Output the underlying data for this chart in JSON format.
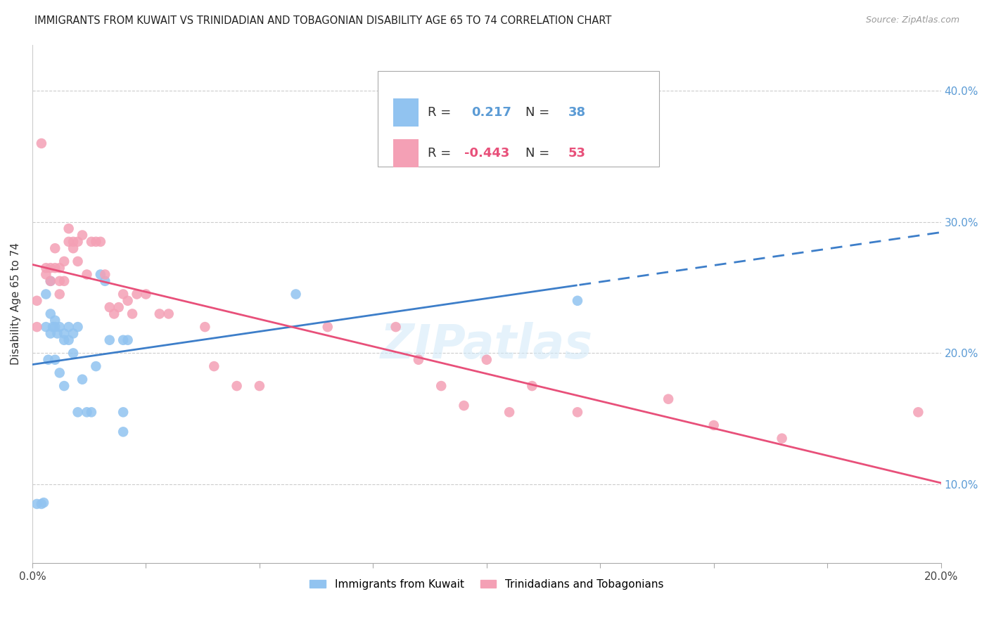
{
  "title": "IMMIGRANTS FROM KUWAIT VS TRINIDADIAN AND TOBAGONIAN DISABILITY AGE 65 TO 74 CORRELATION CHART",
  "source": "Source: ZipAtlas.com",
  "ylabel": "Disability Age 65 to 74",
  "kuwait_color": "#91C3F0",
  "tt_color": "#F4A0B5",
  "kuwait_line_color": "#3D7EC9",
  "tt_line_color": "#E8507A",
  "watermark": "ZIPatlas",
  "xmin": 0.0,
  "xmax": 0.2,
  "ymin": 0.04,
  "ymax": 0.435,
  "yticks": [
    0.1,
    0.2,
    0.3,
    0.4
  ],
  "ytick_labels": [
    "10.0%",
    "20.0%",
    "30.0%",
    "40.0%"
  ],
  "xtick_positions": [
    0.0,
    0.025,
    0.05,
    0.075,
    0.1,
    0.125,
    0.15,
    0.175,
    0.2
  ],
  "kuwait_points_x": [
    0.001,
    0.002,
    0.0025,
    0.003,
    0.003,
    0.0035,
    0.004,
    0.004,
    0.004,
    0.0045,
    0.005,
    0.005,
    0.005,
    0.0055,
    0.006,
    0.006,
    0.007,
    0.007,
    0.007,
    0.008,
    0.008,
    0.009,
    0.009,
    0.01,
    0.01,
    0.011,
    0.012,
    0.013,
    0.014,
    0.015,
    0.016,
    0.017,
    0.02,
    0.02,
    0.02,
    0.021,
    0.058,
    0.12
  ],
  "kuwait_points_y": [
    0.085,
    0.085,
    0.086,
    0.245,
    0.22,
    0.195,
    0.255,
    0.23,
    0.215,
    0.22,
    0.225,
    0.22,
    0.195,
    0.215,
    0.22,
    0.185,
    0.215,
    0.21,
    0.175,
    0.22,
    0.21,
    0.215,
    0.2,
    0.22,
    0.155,
    0.18,
    0.155,
    0.155,
    0.19,
    0.26,
    0.255,
    0.21,
    0.155,
    0.14,
    0.21,
    0.21,
    0.245,
    0.24
  ],
  "tt_points_x": [
    0.001,
    0.001,
    0.002,
    0.003,
    0.003,
    0.004,
    0.004,
    0.005,
    0.005,
    0.006,
    0.006,
    0.006,
    0.007,
    0.007,
    0.008,
    0.008,
    0.009,
    0.009,
    0.01,
    0.01,
    0.011,
    0.012,
    0.013,
    0.014,
    0.015,
    0.016,
    0.017,
    0.018,
    0.019,
    0.02,
    0.021,
    0.022,
    0.023,
    0.025,
    0.028,
    0.03,
    0.038,
    0.04,
    0.045,
    0.05,
    0.065,
    0.08,
    0.085,
    0.09,
    0.095,
    0.1,
    0.105,
    0.11,
    0.12,
    0.14,
    0.15,
    0.165,
    0.195
  ],
  "tt_points_y": [
    0.24,
    0.22,
    0.36,
    0.265,
    0.26,
    0.265,
    0.255,
    0.28,
    0.265,
    0.265,
    0.255,
    0.245,
    0.27,
    0.255,
    0.295,
    0.285,
    0.285,
    0.28,
    0.285,
    0.27,
    0.29,
    0.26,
    0.285,
    0.285,
    0.285,
    0.26,
    0.235,
    0.23,
    0.235,
    0.245,
    0.24,
    0.23,
    0.245,
    0.245,
    0.23,
    0.23,
    0.22,
    0.19,
    0.175,
    0.175,
    0.22,
    0.22,
    0.195,
    0.175,
    0.16,
    0.195,
    0.155,
    0.175,
    0.155,
    0.165,
    0.145,
    0.135,
    0.155
  ]
}
